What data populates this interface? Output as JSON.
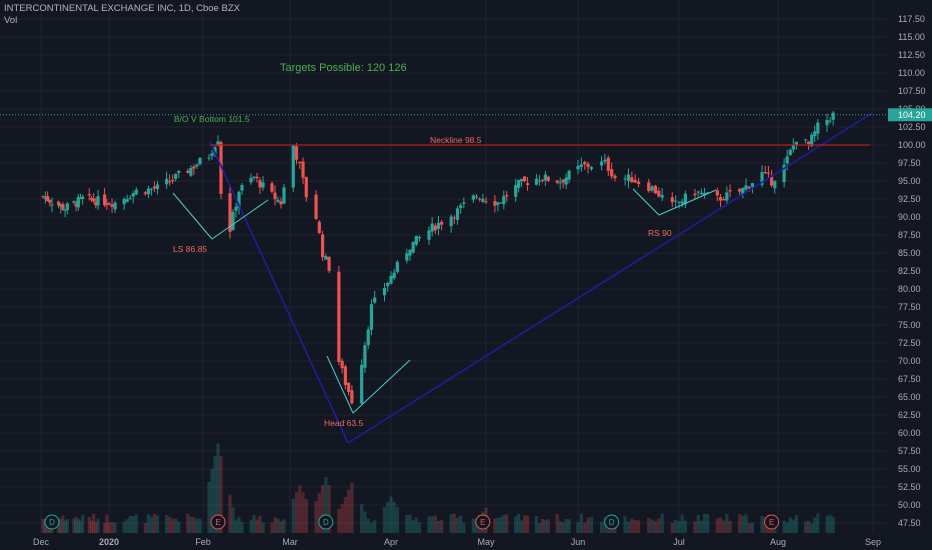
{
  "header": {
    "title": "INTERCONTINENTAL EXCHANGE INC, 1D, Cboe BZX",
    "volume_label": "Vol"
  },
  "colors": {
    "background": "#131722",
    "grid": "#1f2330",
    "up": "#26a69a",
    "down": "#ef5350",
    "trendline": "#1e1e9c",
    "pattern_lines": "#4dd0c4",
    "neckline": "#b71c1c",
    "last_price_bg": "#26a69a",
    "axis_text": "#a9acb8",
    "annotation_green": "#4caf50",
    "annotation_red": "#ef6a5a"
  },
  "chart_data": {
    "type": "candlestick",
    "title": "INTERCONTINENTAL EXCHANGE INC, 1D, Cboe BZX",
    "x_axis": {
      "ticks": [
        "Dec",
        "2020",
        "Feb",
        "Mar",
        "Apr",
        "May",
        "Jun",
        "Jul",
        "Aug",
        "Sep"
      ]
    },
    "y_axis": {
      "ylim": [
        46.0,
        117.5
      ],
      "ticks": [
        117.5,
        115.0,
        112.5,
        110.0,
        107.5,
        105.0,
        102.5,
        100.0,
        97.5,
        95.0,
        92.5,
        90.0,
        87.5,
        85.0,
        82.5,
        80.0,
        77.5,
        75.0,
        72.5,
        70.0,
        67.5,
        65.0,
        62.5,
        60.0,
        57.5,
        55.0,
        52.5,
        50.0,
        47.5
      ]
    },
    "last_price": 104.2,
    "last_price_label": "104.20",
    "grid": true,
    "series": [
      {
        "type": "candlestick",
        "anchors": [
          [
            "2019-12-01",
            93.0
          ],
          [
            "2019-12-12",
            91.2
          ],
          [
            "2019-12-20",
            92.5
          ],
          [
            "2020-01-03",
            92.0
          ],
          [
            "2020-01-10",
            93.6
          ],
          [
            "2020-01-17",
            94.0
          ],
          [
            "2020-01-27",
            96.5
          ],
          [
            "2020-02-03",
            98.6
          ],
          [
            "2020-02-06",
            101.0
          ],
          [
            "2020-02-07",
            93.5
          ],
          [
            "2020-02-10",
            88.3
          ],
          [
            "2020-02-13",
            93.7
          ],
          [
            "2020-02-18",
            95.5
          ],
          [
            "2020-02-24",
            93.0
          ],
          [
            "2020-02-27",
            92.0
          ],
          [
            "2020-03-02",
            100.0
          ],
          [
            "2020-03-04",
            97.0
          ],
          [
            "2020-03-06",
            93.0
          ],
          [
            "2020-03-09",
            90.0
          ],
          [
            "2020-03-11",
            85.0
          ],
          [
            "2020-03-13",
            83.0
          ],
          [
            "2020-03-16",
            70.0
          ],
          [
            "2020-03-18",
            67.0
          ],
          [
            "2020-03-20",
            64.5
          ],
          [
            "2020-03-23",
            70.0
          ],
          [
            "2020-03-26",
            77.5
          ],
          [
            "2020-03-31",
            81.0
          ],
          [
            "2020-04-07",
            86.0
          ],
          [
            "2020-04-14",
            88.5
          ],
          [
            "2020-04-21",
            90.5
          ],
          [
            "2020-04-28",
            93.0
          ],
          [
            "2020-05-05",
            92.0
          ],
          [
            "2020-05-12",
            94.5
          ],
          [
            "2020-05-19",
            95.5
          ],
          [
            "2020-05-26",
            95.0
          ],
          [
            "2020-06-02",
            97.0
          ],
          [
            "2020-06-09",
            97.5
          ],
          [
            "2020-06-12",
            95.5
          ],
          [
            "2020-06-17",
            95.3
          ],
          [
            "2020-06-23",
            94.0
          ],
          [
            "2020-06-29",
            91.5
          ],
          [
            "2020-07-06",
            93.5
          ],
          [
            "2020-07-13",
            92.5
          ],
          [
            "2020-07-20",
            93.5
          ],
          [
            "2020-07-27",
            96.0
          ],
          [
            "2020-07-30",
            95.0
          ],
          [
            "2020-08-03",
            97.0
          ],
          [
            "2020-08-07",
            101.0
          ],
          [
            "2020-08-11",
            100.0
          ],
          [
            "2020-08-14",
            102.5
          ],
          [
            "2020-08-19",
            104.2
          ]
        ],
        "note": ""
      }
    ],
    "volume": {
      "label": "Vol",
      "spikes": [
        [
          "2020-02-06",
          3.2
        ],
        [
          "2020-03-04",
          1.7
        ],
        [
          "2020-03-12",
          2.0
        ],
        [
          "2020-03-20",
          1.8
        ],
        [
          "2020-04-01",
          1.3
        ],
        [
          "2020-05-01",
          0.9
        ]
      ]
    },
    "events": [
      {
        "date": "2019-12-06",
        "label": "D",
        "color": "#26a69a"
      },
      {
        "date": "2020-02-06",
        "label": "E",
        "color": "#ef5350"
      },
      {
        "date": "2020-03-12",
        "label": "D",
        "color": "#26a69a"
      },
      {
        "date": "2020-04-30",
        "label": "E",
        "color": "#ef5350"
      },
      {
        "date": "2020-06-11",
        "label": "D",
        "color": "#26a69a"
      },
      {
        "date": "2020-07-30",
        "label": "E",
        "color": "#ef5350"
      }
    ]
  },
  "annotations": {
    "targets": "Targets Possible:  120  126",
    "bo_v_bottom": "B/O V Bottom  101.5",
    "neckline": "Neckline  98.5",
    "left_shoulder": "LS 86.85",
    "head": "Head 63.5",
    "right_shoulder": "RS 90"
  }
}
